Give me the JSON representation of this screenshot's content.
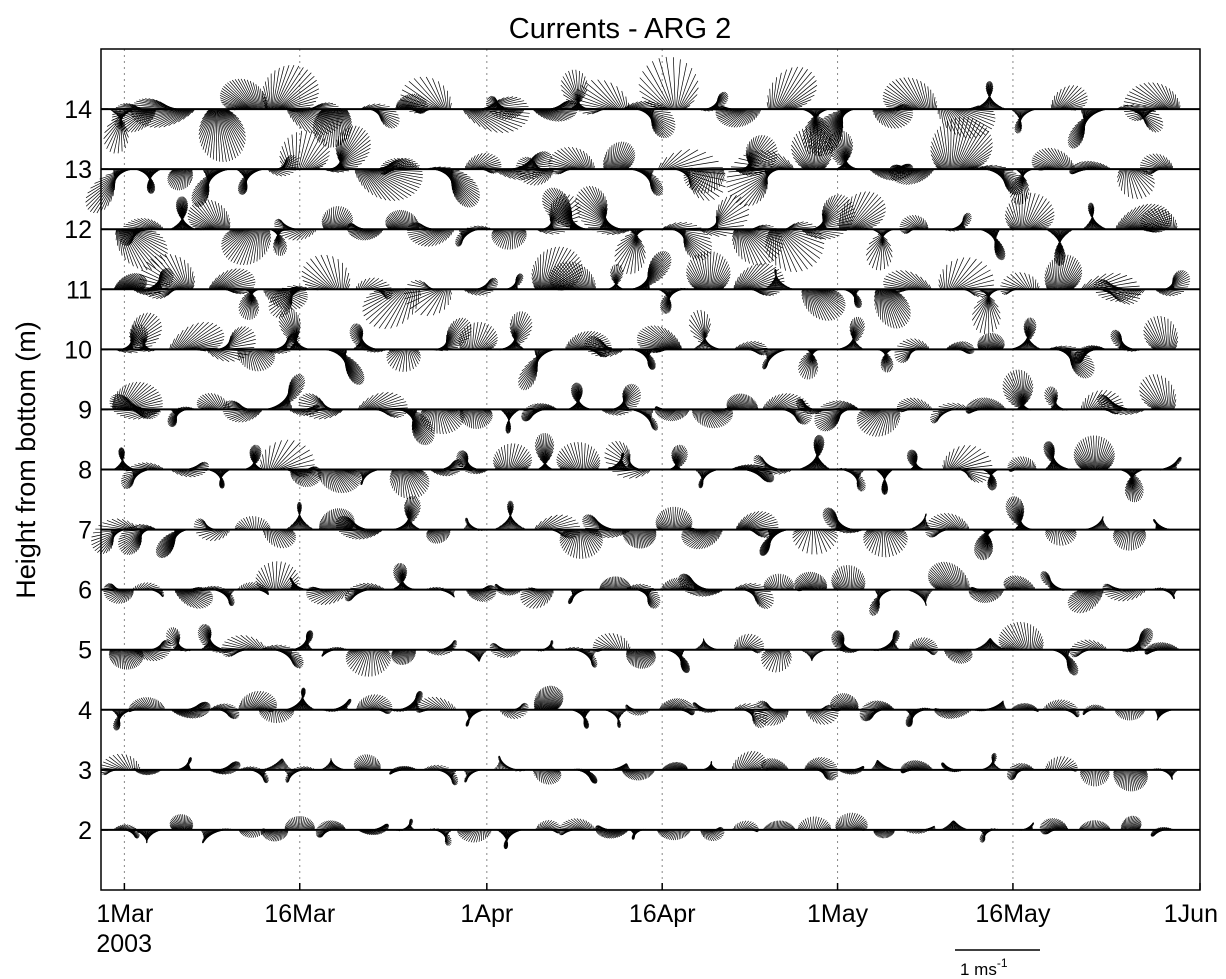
{
  "chart_data": {
    "type": "stick-vector",
    "title": "Currents - ARG 2",
    "ylabel": "Height from bottom (m)",
    "xlabel": "",
    "x_range": [
      "2003-02-27",
      "2003-06-01"
    ],
    "y_range": [
      1,
      15
    ],
    "y_ticks": [
      2,
      3,
      4,
      5,
      6,
      7,
      8,
      9,
      10,
      11,
      12,
      13,
      14
    ],
    "x_ticks": [
      {
        "date": "2003-03-01",
        "label": "1Mar",
        "sublabel": "2003"
      },
      {
        "date": "2003-03-16",
        "label": "16Mar",
        "sublabel": ""
      },
      {
        "date": "2003-04-01",
        "label": "1Apr",
        "sublabel": ""
      },
      {
        "date": "2003-04-16",
        "label": "16Apr",
        "sublabel": ""
      },
      {
        "date": "2003-05-01",
        "label": "1May",
        "sublabel": ""
      },
      {
        "date": "2003-05-16",
        "label": "16May",
        "sublabel": ""
      },
      {
        "date": "2003-06-01",
        "label": "1Jun",
        "sublabel": ""
      }
    ],
    "scale_bar": {
      "label": "1 ms",
      "exponent": "-1",
      "value_ms": 1
    },
    "grid": "vertical dotted at date ticks",
    "heights_m": [
      2,
      3,
      4,
      5,
      6,
      7,
      8,
      9,
      10,
      11,
      12,
      13,
      14
    ],
    "event_days": [
      "2003-03-01",
      "2003-03-03",
      "2003-03-06",
      "2003-03-09",
      "2003-03-12",
      "2003-03-14",
      "2003-03-16",
      "2003-03-19",
      "2003-03-22",
      "2003-03-25",
      "2003-03-28",
      "2003-03-31",
      "2003-04-03",
      "2003-04-06",
      "2003-04-09",
      "2003-04-12",
      "2003-04-14",
      "2003-04-17",
      "2003-04-20",
      "2003-04-23",
      "2003-04-26",
      "2003-04-29",
      "2003-05-02",
      "2003-05-05",
      "2003-05-08",
      "2003-05-11",
      "2003-05-14",
      "2003-05-17",
      "2003-05-20",
      "2003-05-23",
      "2003-05-26",
      "2003-05-29"
    ],
    "colors": {
      "sticks": "#000000",
      "axes": "#000000",
      "grid": "#888888",
      "background": "#ffffff"
    }
  }
}
